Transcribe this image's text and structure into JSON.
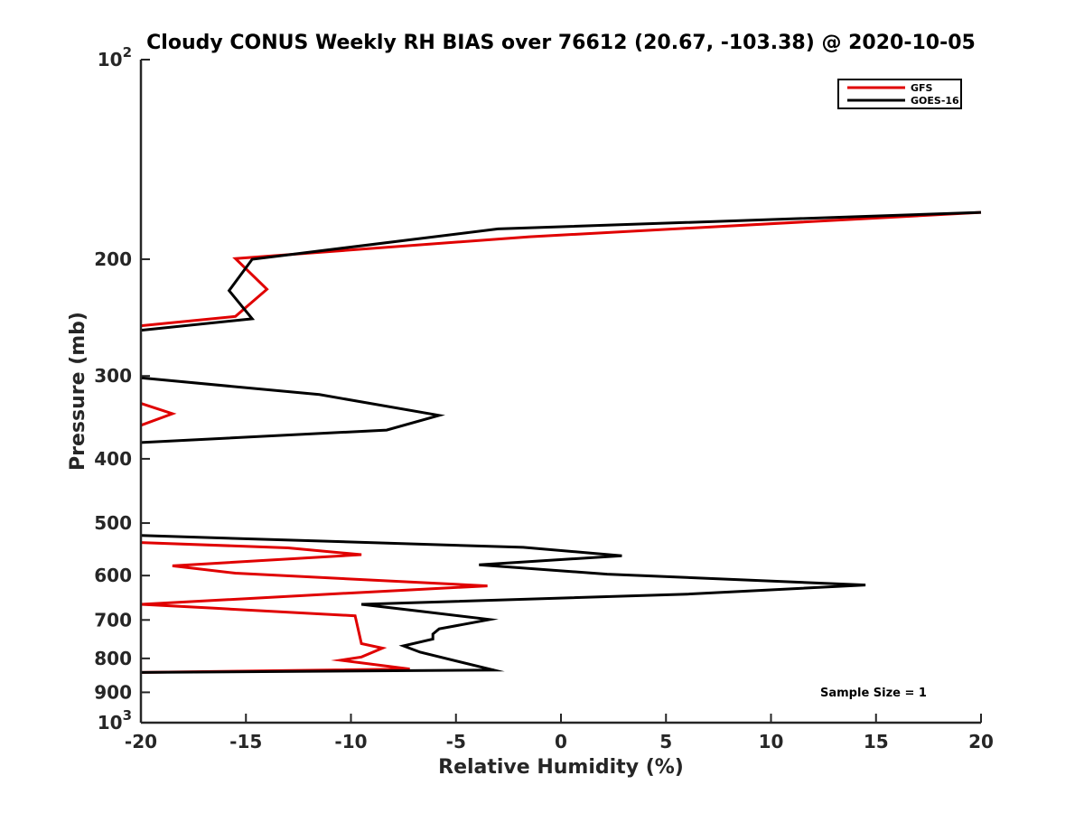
{
  "chart_data": {
    "type": "line",
    "title": "Cloudy CONUS Weekly RH BIAS over 76612 (20.67, -103.38) @ 2020-10-05",
    "xlabel": "Relative Humidity (%)",
    "ylabel": "Pressure (mb)",
    "xlim": [
      -20,
      20
    ],
    "ylim": [
      100,
      1000
    ],
    "yscale": "log",
    "y_reversed": true,
    "xticks": [
      "-20",
      "-15",
      "-10",
      "-5",
      "0",
      "5",
      "10",
      "15",
      "20"
    ],
    "yticks": [
      {
        "value": 100,
        "base": "10",
        "exp": "2"
      },
      {
        "value": 200,
        "label": "200"
      },
      {
        "value": 300,
        "label": "300"
      },
      {
        "value": 400,
        "label": "400"
      },
      {
        "value": 500,
        "label": "500"
      },
      {
        "value": 600,
        "label": "600"
      },
      {
        "value": 700,
        "label": "700"
      },
      {
        "value": 800,
        "label": "800"
      },
      {
        "value": 900,
        "label": "900"
      },
      {
        "value": 1000,
        "base": "10",
        "exp": "3"
      }
    ],
    "legend_position": "top-right",
    "annotation": "Sample Size = 1",
    "series": [
      {
        "name": "GFS",
        "color": "#e00000",
        "segments": [
          [
            [
              20,
              170
            ],
            [
              -1.5,
              185
            ],
            [
              -15.5,
              199.5
            ],
            [
              -14,
              222
            ],
            [
              -15.5,
              244
            ],
            [
              -20,
              252
            ]
          ],
          [
            [
              -20,
              330
            ],
            [
              -18.5,
              342
            ],
            [
              -20,
              356
            ]
          ],
          [
            [
              -20,
              535
            ],
            [
              -13,
              545
            ],
            [
              -9.5,
              558
            ],
            [
              -18.5,
              580
            ],
            [
              -15.5,
              595
            ],
            [
              -3.5,
              622
            ],
            [
              -9,
              635
            ],
            [
              -20,
              663
            ],
            [
              -16.5,
              672
            ],
            [
              -9.8,
              690
            ],
            [
              -9.5,
              760
            ],
            [
              -8.5,
              772
            ],
            [
              -9.5,
              796
            ],
            [
              -10.5,
              805
            ],
            [
              -7.2,
              830
            ],
            [
              -20,
              840
            ]
          ]
        ]
      },
      {
        "name": "GOES-16",
        "color": "#000000",
        "segments": [
          [
            [
              20,
              170
            ],
            [
              -3,
              180
            ],
            [
              -14.7,
              200
            ],
            [
              -15.8,
              223
            ],
            [
              -14.7,
              246
            ],
            [
              -20,
              256
            ]
          ],
          [
            [
              -20,
              302
            ],
            [
              -11.5,
              320
            ],
            [
              -5.8,
              344
            ],
            [
              -8.3,
              362
            ],
            [
              -20,
              378
            ]
          ],
          [
            [
              -20,
              522
            ],
            [
              -1.8,
              544
            ],
            [
              2.9,
              560
            ],
            [
              -3.9,
              578
            ],
            [
              2.2,
              597
            ],
            [
              14.5,
              620
            ],
            [
              6,
              640
            ],
            [
              -9.5,
              663
            ],
            [
              -6.7,
              679
            ],
            [
              -3.4,
              699
            ],
            [
              -5.8,
              722
            ],
            [
              -6.1,
              735
            ],
            [
              -6.1,
              748
            ],
            [
              -7.5,
              766
            ],
            [
              -6.7,
              783
            ],
            [
              -3.2,
              833
            ],
            [
              -20,
              840
            ]
          ]
        ]
      }
    ]
  }
}
